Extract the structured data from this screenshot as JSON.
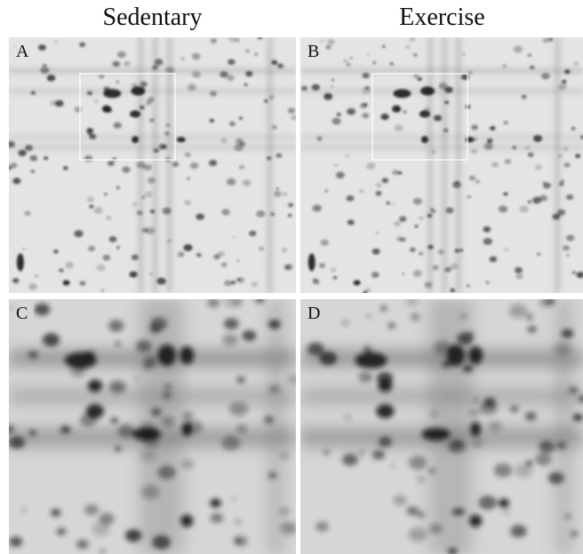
{
  "columns": [
    {
      "title": "Sedentary"
    },
    {
      "title": "Exercise"
    }
  ],
  "panels": [
    {
      "label": "A"
    },
    {
      "label": "B"
    },
    {
      "label": "C"
    },
    {
      "label": "D"
    }
  ]
}
